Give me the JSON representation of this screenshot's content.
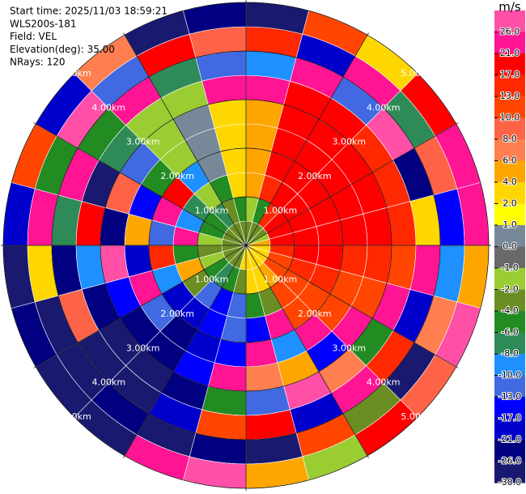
{
  "chart_data": {
    "type": "ppi",
    "info": [
      "Start time: 2025/11/03 18:59:21",
      "WLS200s-181",
      "Field: VEL",
      "Elevation(deg): 35.00",
      "NRays: 120"
    ],
    "colorbar_label": "m/s",
    "clim": [
      -30,
      30
    ],
    "cticks": [
      {
        "value": 26,
        "label": "26.0"
      },
      {
        "value": 21,
        "label": "21.0"
      },
      {
        "value": 17,
        "label": "17.0"
      },
      {
        "value": 13,
        "label": "13.0"
      },
      {
        "value": 10,
        "label": "10.0"
      },
      {
        "value": 8,
        "label": "8.0"
      },
      {
        "value": 6,
        "label": "6.0"
      },
      {
        "value": 4,
        "label": "4.0"
      },
      {
        "value": 2,
        "label": "2.0"
      },
      {
        "value": 1,
        "label": "1.0"
      },
      {
        "value": 0,
        "label": "0.0"
      },
      {
        "value": -1,
        "label": "-1.0"
      },
      {
        "value": -2,
        "label": "-2.0"
      },
      {
        "value": -4,
        "label": "-4.0"
      },
      {
        "value": -6,
        "label": "-6.0"
      },
      {
        "value": -8,
        "label": "-8.0"
      },
      {
        "value": -10,
        "label": "-10.0"
      },
      {
        "value": -13,
        "label": "-13.0"
      },
      {
        "value": -17,
        "label": "-17.0"
      },
      {
        "value": -21,
        "label": "-21.0"
      },
      {
        "value": -26,
        "label": "-26.0"
      },
      {
        "value": -30,
        "label": "-30.0"
      }
    ],
    "colors": [
      "#ff4fa7",
      "#ff1493",
      "#ff0000",
      "#ff2800",
      "#ff4500",
      "#ff6347",
      "#ff7f50",
      "#ffa500",
      "#ffd700",
      "#ffff00",
      "#778899",
      "#696969",
      "#9acd32",
      "#6b8e23",
      "#228b22",
      "#2e8b57",
      "#1e90ff",
      "#4169e1",
      "#0000ff",
      "#0000cd",
      "#000080",
      "#191970"
    ],
    "rings": [
      {
        "value": 1,
        "label": "1.00km"
      },
      {
        "value": 2,
        "label": "2.00km"
      },
      {
        "value": 3,
        "label": "3.00km"
      },
      {
        "value": 4,
        "label": "4.00km"
      },
      {
        "value": 5,
        "label": "5.00km"
      }
    ],
    "azimuths": [
      0,
      15,
      30,
      45,
      60,
      75,
      90,
      105,
      120,
      135,
      150,
      165,
      180,
      195,
      210,
      225,
      240,
      255,
      270,
      285,
      300,
      315,
      330,
      345,
      360
    ],
    "ranges": [
      0,
      0.5,
      1,
      1.5,
      2,
      2.5,
      3,
      3.5,
      4,
      4.5,
      5
    ],
    "values": [
      [
        -3,
        -1.5,
        5,
        5,
        5,
        5,
        23,
        -9,
        15,
        -28
      ],
      [
        -3,
        -5,
        15,
        18,
        18,
        18,
        18,
        24,
        -18,
        11
      ],
      [
        -3,
        15,
        18,
        18,
        18,
        18,
        18,
        -12,
        24,
        3
      ],
      [
        -3,
        18,
        18,
        18,
        18,
        18,
        16,
        27,
        -7,
        19
      ],
      [
        -1.5,
        18,
        18,
        18,
        18,
        18,
        16,
        -22,
        9,
        24
      ],
      [
        5,
        18,
        18,
        18,
        18,
        18,
        14,
        3,
        -15,
        24
      ],
      [
        3,
        14,
        18,
        18,
        16,
        14,
        11,
        24,
        -9,
        5
      ],
      [
        3,
        12,
        14,
        14,
        12,
        11,
        24,
        -18,
        7,
        27
      ],
      [
        3,
        11,
        12,
        11,
        11,
        25,
        -5,
        15,
        -27,
        9
      ],
      [
        3,
        5,
        11,
        11,
        24,
        -14,
        7,
        22,
        -3,
        18
      ],
      [
        3,
        3,
        -3,
        22,
        -9,
        5,
        26,
        -18,
        12,
        -1.5
      ],
      [
        3,
        3,
        -5,
        -15,
        24,
        7,
        -11,
        19,
        -28,
        5
      ],
      [
        3,
        -3,
        -11,
        -11,
        -15,
        24,
        -6,
        12,
        -23,
        27
      ],
      [
        -3,
        -5,
        -15,
        -15,
        -19,
        -15,
        -23,
        -19,
        -28,
        24
      ],
      [
        -3,
        -7,
        -12,
        -19,
        -23,
        -23,
        -28,
        -28,
        -23,
        -28
      ],
      [
        -3,
        -5,
        -3,
        -19,
        -11,
        -23,
        -28,
        -28,
        -28,
        -28
      ],
      [
        -3,
        -1.5,
        5,
        -9,
        24,
        -17,
        -23,
        9,
        -28,
        -23
      ],
      [
        -3,
        -3,
        -5,
        15,
        -19,
        27,
        -9,
        -23,
        3,
        -28
      ],
      [
        -3,
        -1.5,
        22,
        -12,
        5,
        -25,
        18,
        -7,
        24,
        -19
      ],
      [
        -3,
        -5,
        -9,
        24,
        -15,
        9,
        -27,
        22,
        -5,
        12
      ],
      [
        -3,
        -5,
        -7,
        18,
        -5,
        -13,
        -7,
        -5,
        26,
        -19
      ],
      [
        -3,
        -7,
        -1.5,
        -9,
        -1.5,
        -1.5,
        -1.5,
        23,
        -13,
        7
      ],
      [
        -3,
        -3,
        -5,
        0.5,
        0.5,
        0.5,
        -1.5,
        -7,
        18,
        -27
      ],
      [
        -3,
        -5,
        3,
        3,
        3,
        3,
        24,
        -13,
        8,
        -22
      ]
    ]
  }
}
